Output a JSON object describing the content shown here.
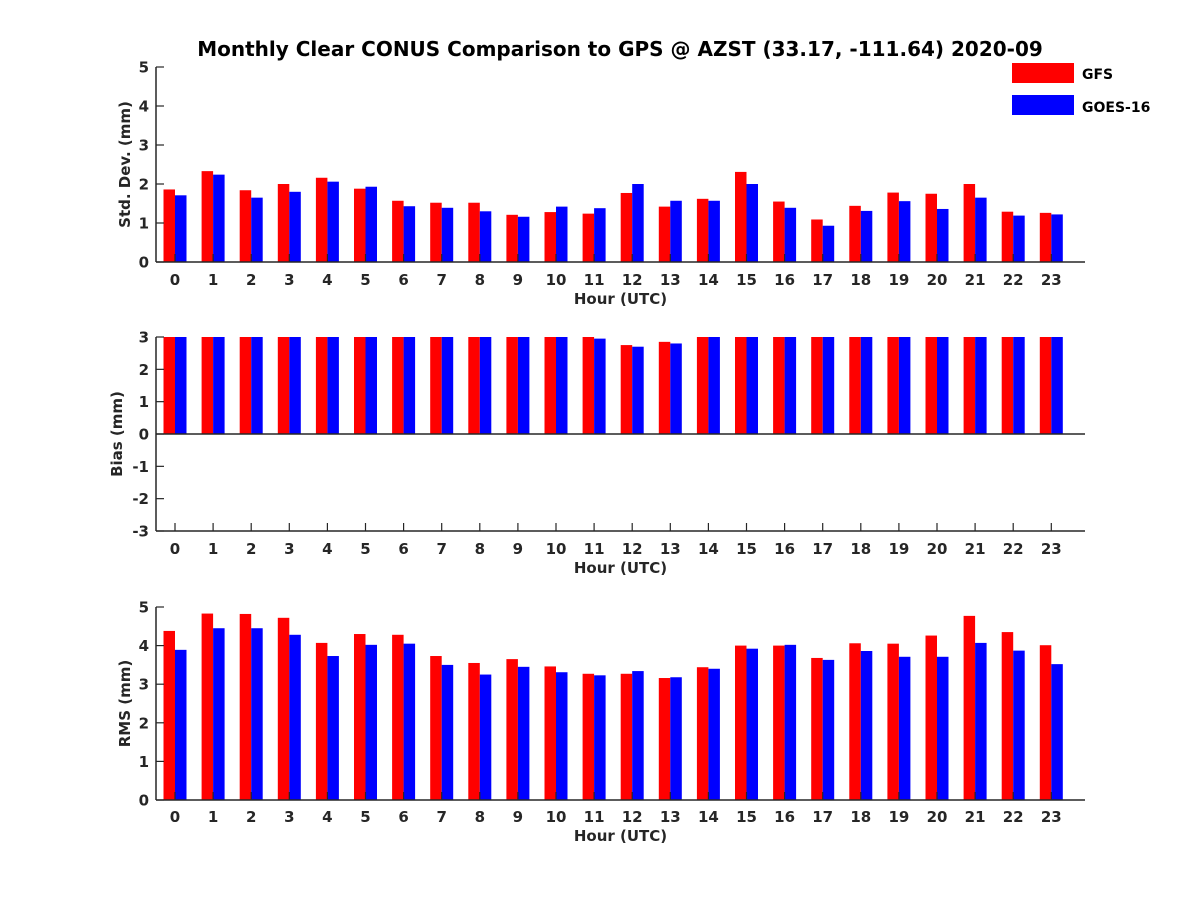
{
  "title": "Monthly Clear CONUS Comparison to GPS @ AZST (33.17, -111.64) 2020-09",
  "legend": {
    "placement": "top-right",
    "items": [
      {
        "label": "GFS",
        "color": "#ff0000"
      },
      {
        "label": "GOES-16",
        "color": "#0000ff"
      }
    ]
  },
  "chart_data": [
    {
      "type": "bar",
      "title": "Monthly Clear CONUS Comparison to GPS @ AZST (33.17, -111.64) 2020-09",
      "xlabel": "Hour (UTC)",
      "ylabel": "Std. Dev. (mm)",
      "ylim": [
        0,
        5
      ],
      "yticks": [
        "0",
        "1",
        "2",
        "3",
        "4",
        "5"
      ],
      "categories": [
        "0",
        "1",
        "2",
        "3",
        "4",
        "5",
        "6",
        "7",
        "8",
        "9",
        "10",
        "11",
        "12",
        "13",
        "14",
        "15",
        "16",
        "17",
        "18",
        "19",
        "20",
        "21",
        "22",
        "23"
      ],
      "series": [
        {
          "name": "GFS",
          "color": "#ff0000",
          "values": [
            1.86,
            2.33,
            1.84,
            2.0,
            2.16,
            1.88,
            1.57,
            1.52,
            1.52,
            1.21,
            1.28,
            1.24,
            1.77,
            1.42,
            1.62,
            2.31,
            1.55,
            1.09,
            1.44,
            1.78,
            1.75,
            2.0,
            1.29,
            1.26
          ]
        },
        {
          "name": "GOES-16",
          "color": "#0000ff",
          "values": [
            1.71,
            2.24,
            1.65,
            1.8,
            2.06,
            1.93,
            1.43,
            1.39,
            1.3,
            1.16,
            1.42,
            1.38,
            2.0,
            1.57,
            1.57,
            2.0,
            1.39,
            0.93,
            1.31,
            1.56,
            1.36,
            1.65,
            1.19,
            1.22
          ]
        }
      ]
    },
    {
      "type": "bar",
      "xlabel": "Hour (UTC)",
      "ylabel": "Bias (mm)",
      "ylim": [
        -3,
        3
      ],
      "yticks": [
        "-3",
        "-2",
        "-1",
        "0",
        "1",
        "2",
        "3"
      ],
      "categories": [
        "0",
        "1",
        "2",
        "3",
        "4",
        "5",
        "6",
        "7",
        "8",
        "9",
        "10",
        "11",
        "12",
        "13",
        "14",
        "15",
        "16",
        "17",
        "18",
        "19",
        "20",
        "21",
        "22",
        "23"
      ],
      "series": [
        {
          "name": "GFS",
          "color": "#ff0000",
          "values": [
            3.0,
            3.0,
            3.0,
            3.0,
            3.0,
            3.0,
            3.0,
            3.0,
            3.0,
            3.0,
            3.0,
            3.0,
            2.75,
            2.85,
            3.0,
            3.0,
            3.0,
            3.0,
            3.0,
            3.0,
            3.0,
            3.0,
            3.0,
            3.0
          ]
        },
        {
          "name": "GOES-16",
          "color": "#0000ff",
          "values": [
            3.0,
            3.0,
            3.0,
            3.0,
            3.0,
            3.0,
            3.0,
            3.0,
            3.0,
            3.0,
            3.0,
            2.95,
            2.7,
            2.8,
            3.0,
            3.0,
            3.0,
            3.0,
            3.0,
            3.0,
            3.0,
            3.0,
            3.0,
            3.0
          ]
        }
      ]
    },
    {
      "type": "bar",
      "xlabel": "Hour (UTC)",
      "ylabel": "RMS (mm)",
      "ylim": [
        0,
        5
      ],
      "yticks": [
        "0",
        "1",
        "2",
        "3",
        "4",
        "5"
      ],
      "categories": [
        "0",
        "1",
        "2",
        "3",
        "4",
        "5",
        "6",
        "7",
        "8",
        "9",
        "10",
        "11",
        "12",
        "13",
        "14",
        "15",
        "16",
        "17",
        "18",
        "19",
        "20",
        "21",
        "22",
        "23"
      ],
      "series": [
        {
          "name": "GFS",
          "color": "#ff0000",
          "values": [
            4.38,
            4.83,
            4.82,
            4.72,
            4.07,
            4.3,
            4.28,
            3.73,
            3.55,
            3.65,
            3.46,
            3.27,
            3.27,
            3.16,
            3.44,
            4.0,
            4.0,
            3.68,
            4.06,
            4.05,
            4.26,
            4.77,
            4.35,
            4.01
          ]
        },
        {
          "name": "GOES-16",
          "color": "#0000ff",
          "values": [
            3.89,
            4.45,
            4.45,
            4.28,
            3.73,
            4.02,
            4.05,
            3.5,
            3.25,
            3.45,
            3.31,
            3.23,
            3.34,
            3.18,
            3.4,
            3.92,
            4.02,
            3.63,
            3.86,
            3.71,
            3.71,
            4.07,
            3.87,
            3.52
          ]
        }
      ]
    }
  ]
}
